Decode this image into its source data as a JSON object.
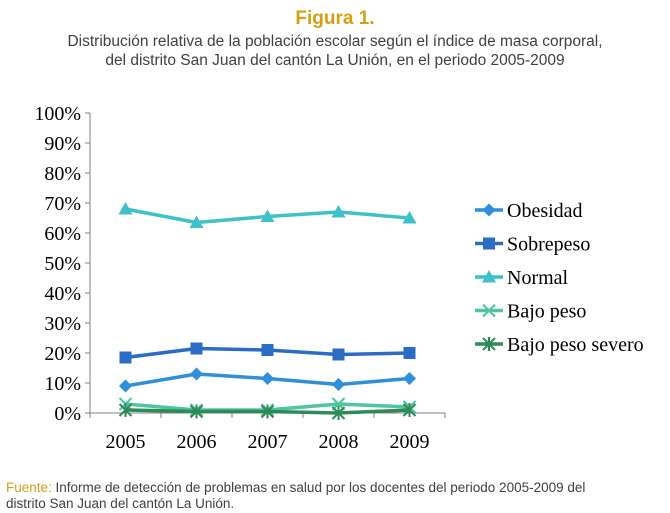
{
  "figure": {
    "title": "Figura 1.",
    "subtitle_line1": "Distribución relativa de la población escolar según el índice de masa corporal,",
    "subtitle_line2": "del distrito San Juan del cantón La Unión, en el periodo 2005-2009"
  },
  "footer": {
    "label": "Fuente:",
    "text_line1": " Informe de detección de problemas en salud por los docentes del periodo 2005-2009 del",
    "text_line2": "distrito San Juan del cantón La Unión."
  },
  "colors": {
    "title": "#d4a013",
    "obesidad": "#2f8fd8",
    "sobrepeso": "#2b6cc4",
    "normal": "#3fc1c9",
    "bajo_peso": "#4cc5a0",
    "bajo_peso_severo": "#2e8b57"
  },
  "chart_data": {
    "type": "line",
    "title": "",
    "xlabel": "",
    "ylabel": "",
    "categories": [
      "2005",
      "2006",
      "2007",
      "2008",
      "2009"
    ],
    "ylim": [
      0,
      100
    ],
    "y_ticks": [
      "0%",
      "10%",
      "20%",
      "30%",
      "40%",
      "50%",
      "60%",
      "70%",
      "80%",
      "90%",
      "100%"
    ],
    "grid": false,
    "legend_position": "right",
    "series": [
      {
        "name": "Obesidad",
        "values": [
          9,
          13,
          11.5,
          9.5,
          11.5
        ],
        "marker": "diamond",
        "color": "#2f8fd8"
      },
      {
        "name": "Sobrepeso",
        "values": [
          18.5,
          21.5,
          21,
          19.5,
          20
        ],
        "marker": "square",
        "color": "#2b6cc4"
      },
      {
        "name": "Normal",
        "values": [
          68,
          63.5,
          65.5,
          67,
          65
        ],
        "marker": "triangle",
        "color": "#3fc1c9"
      },
      {
        "name": "Bajo peso",
        "values": [
          3,
          1,
          1,
          3,
          2
        ],
        "marker": "x",
        "color": "#4cc5a0"
      },
      {
        "name": "Bajo peso severo",
        "values": [
          1,
          0.5,
          0.5,
          0,
          1
        ],
        "marker": "star",
        "color": "#2e8b57"
      }
    ]
  }
}
